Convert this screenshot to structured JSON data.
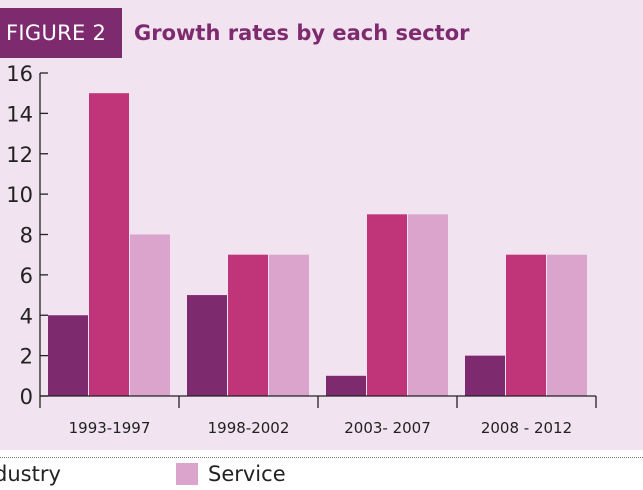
{
  "figure": {
    "tag": "FIGURE 2",
    "title": "Growth rates by each sector"
  },
  "colors": {
    "industry": "#7d2b6e",
    "middle": "#c0357a",
    "service": "#dba4cc",
    "background": "#f1e3f0",
    "axis": "#222222"
  },
  "legend": {
    "industry_label": "dustry",
    "service_label": "Service"
  },
  "chart_data": {
    "type": "bar",
    "categories": [
      "1993-1997",
      "1998-2002",
      "2003- 2007",
      "2008 - 2012"
    ],
    "series": [
      {
        "name": "Industry",
        "values": [
          4,
          5,
          1,
          2
        ]
      },
      {
        "values": [
          15,
          7,
          9,
          7
        ]
      },
      {
        "name": "Service",
        "values": [
          8,
          7,
          9,
          7
        ]
      }
    ],
    "yticks": [
      0,
      2,
      4,
      6,
      8,
      10,
      12,
      14,
      16
    ],
    "ylim": [
      0,
      16
    ],
    "grid": false,
    "legend_position": "bottom"
  }
}
